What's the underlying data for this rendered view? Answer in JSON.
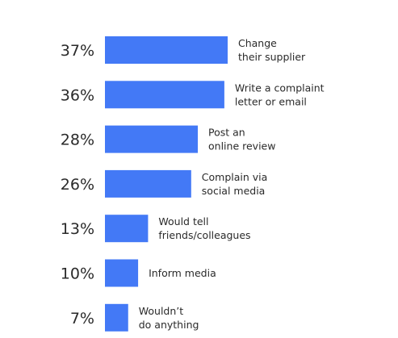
{
  "chart_data": {
    "type": "bar",
    "orientation": "horizontal",
    "categories": [
      [
        "Change",
        "their supplier"
      ],
      [
        "Write a complaint",
        "letter or email"
      ],
      [
        "Post an",
        "online review"
      ],
      [
        "Complain via",
        "social media"
      ],
      [
        "Would tell",
        "friends/colleagues"
      ],
      [
        "Inform media"
      ],
      [
        "Wouldn’t",
        "do anything"
      ]
    ],
    "values": [
      37,
      36,
      28,
      26,
      13,
      10,
      7
    ],
    "value_labels": [
      "37%",
      "36%",
      "28%",
      "26%",
      "13%",
      "10%",
      "7%"
    ],
    "xlim": [
      0,
      37
    ],
    "bar_color": "#4379f6",
    "grid": false,
    "legend": "none"
  }
}
